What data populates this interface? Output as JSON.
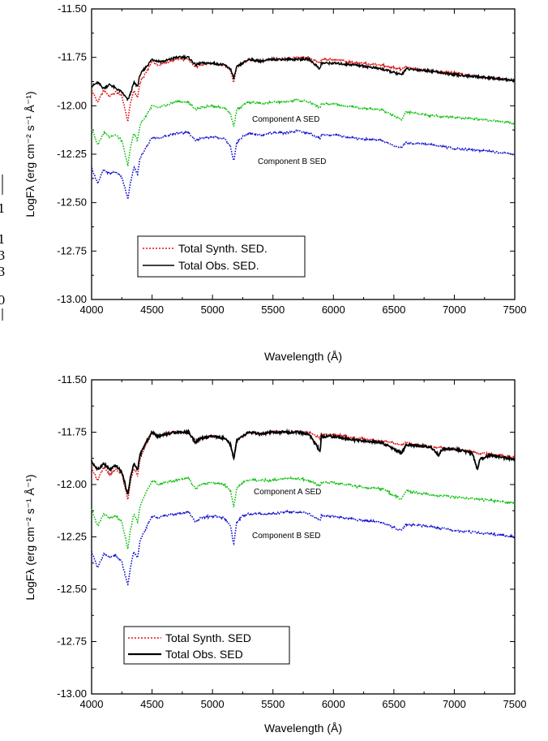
{
  "edge_fragment": [
    "1",
    "1",
    "3",
    "3",
    "0"
  ],
  "chart_data": [
    {
      "type": "line",
      "xlabel": "Wavelength (Å)",
      "ylabel": "LogFλ (erg cm⁻² s⁻¹ Å⁻¹)",
      "xlim": [
        4000,
        7500
      ],
      "ylim": [
        -13.0,
        -11.5
      ],
      "x_ticks": [
        "4000",
        "4500",
        "5000",
        "5500",
        "6000",
        "6500",
        "7000",
        "7500"
      ],
      "y_ticks": [
        "-11.50",
        "-11.75",
        "-12.00",
        "-12.25",
        "-12.50",
        "-12.75",
        "-13.00"
      ],
      "legend": {
        "position": "lower-left",
        "entries": [
          "Total Synth. SED.",
          "Total Obs. SED."
        ]
      },
      "annotations": [
        "Component A SED",
        "Component B SED"
      ],
      "series": [
        {
          "name": "Total Synth. SED.",
          "color": "#e01010",
          "style": "dotted",
          "x": [
            4000,
            4050,
            4100,
            4150,
            4200,
            4250,
            4300,
            4320,
            4350,
            4380,
            4400,
            4450,
            4500,
            4550,
            4600,
            4700,
            4800,
            4861,
            4900,
            5000,
            5100,
            5150,
            5175,
            5200,
            5250,
            5300,
            5400,
            5500,
            5600,
            5700,
            5800,
            5890,
            5900,
            6000,
            6200,
            6400,
            6563,
            6600,
            6800,
            7000,
            7200,
            7500
          ],
          "y": [
            -11.92,
            -11.98,
            -11.92,
            -11.95,
            -11.93,
            -11.95,
            -12.08,
            -11.99,
            -11.92,
            -11.96,
            -11.88,
            -11.83,
            -11.77,
            -11.79,
            -11.78,
            -11.76,
            -11.76,
            -11.8,
            -11.79,
            -11.78,
            -11.79,
            -11.82,
            -11.88,
            -11.8,
            -11.78,
            -11.76,
            -11.77,
            -11.76,
            -11.76,
            -11.75,
            -11.75,
            -11.78,
            -11.76,
            -11.76,
            -11.78,
            -11.79,
            -11.81,
            -11.8,
            -11.82,
            -11.83,
            -11.85,
            -11.87
          ]
        },
        {
          "name": "Total Obs. SED.",
          "color": "#000000",
          "style": "solid",
          "x": [
            4000,
            4050,
            4100,
            4150,
            4200,
            4250,
            4300,
            4320,
            4350,
            4380,
            4400,
            4450,
            4500,
            4550,
            4600,
            4700,
            4800,
            4861,
            4900,
            5000,
            5100,
            5150,
            5175,
            5200,
            5250,
            5300,
            5400,
            5500,
            5600,
            5700,
            5800,
            5890,
            5900,
            6000,
            6200,
            6400,
            6563,
            6600,
            6800,
            7000,
            7200,
            7500
          ],
          "y": [
            -11.9,
            -11.88,
            -11.91,
            -11.89,
            -11.91,
            -11.93,
            -11.97,
            -11.94,
            -11.88,
            -11.9,
            -11.84,
            -11.8,
            -11.76,
            -11.77,
            -11.77,
            -11.75,
            -11.75,
            -11.79,
            -11.78,
            -11.78,
            -11.79,
            -11.81,
            -11.86,
            -11.8,
            -11.78,
            -11.76,
            -11.77,
            -11.76,
            -11.76,
            -11.76,
            -11.76,
            -11.81,
            -11.78,
            -11.78,
            -11.79,
            -11.81,
            -11.84,
            -11.81,
            -11.82,
            -11.84,
            -11.85,
            -11.87
          ]
        },
        {
          "color": "#10c010",
          "style": "dotted",
          "x": [
            4000,
            4050,
            4100,
            4150,
            4200,
            4250,
            4300,
            4320,
            4350,
            4380,
            4400,
            4450,
            4500,
            4550,
            4600,
            4700,
            4800,
            4861,
            4900,
            5000,
            5100,
            5150,
            5175,
            5200,
            5250,
            5300,
            5400,
            5500,
            5600,
            5700,
            5800,
            5890,
            5900,
            6000,
            6200,
            6400,
            6563,
            6600,
            6800,
            7000,
            7200,
            7500
          ],
          "y": [
            -12.12,
            -12.2,
            -12.14,
            -12.16,
            -12.15,
            -12.18,
            -12.31,
            -12.22,
            -12.14,
            -12.18,
            -12.1,
            -12.05,
            -12.0,
            -12.01,
            -12.0,
            -11.98,
            -11.98,
            -12.02,
            -12.01,
            -12.0,
            -12.01,
            -12.04,
            -12.11,
            -12.02,
            -12.0,
            -11.98,
            -11.99,
            -11.98,
            -11.98,
            -11.97,
            -11.98,
            -12.01,
            -11.99,
            -11.99,
            -12.01,
            -12.02,
            -12.07,
            -12.03,
            -12.05,
            -12.06,
            -12.07,
            -12.09
          ]
        },
        {
          "color": "#1010d0",
          "style": "dotted",
          "x": [
            4000,
            4050,
            4100,
            4150,
            4200,
            4250,
            4300,
            4320,
            4350,
            4380,
            4400,
            4450,
            4500,
            4550,
            4600,
            4700,
            4800,
            4861,
            4900,
            5000,
            5100,
            5150,
            5175,
            5200,
            5250,
            5300,
            5400,
            5500,
            5600,
            5700,
            5800,
            5890,
            5900,
            6000,
            6200,
            6400,
            6563,
            6600,
            6800,
            7000,
            7200,
            7500
          ],
          "y": [
            -12.32,
            -12.4,
            -12.33,
            -12.35,
            -12.34,
            -12.37,
            -12.48,
            -12.4,
            -12.32,
            -12.35,
            -12.27,
            -12.22,
            -12.16,
            -12.17,
            -12.16,
            -12.14,
            -12.14,
            -12.18,
            -12.17,
            -12.16,
            -12.17,
            -12.21,
            -12.29,
            -12.19,
            -12.16,
            -12.14,
            -12.15,
            -12.14,
            -12.14,
            -12.13,
            -12.14,
            -12.17,
            -12.15,
            -12.15,
            -12.17,
            -12.18,
            -12.22,
            -12.19,
            -12.2,
            -12.22,
            -12.23,
            -12.25
          ]
        }
      ]
    },
    {
      "type": "line",
      "xlabel": "Wavelength (Å)",
      "ylabel": "LogFλ (erg cm⁻² s⁻¹ Å⁻¹)",
      "xlim": [
        4000,
        7500
      ],
      "ylim": [
        -13.0,
        -11.5
      ],
      "x_ticks": [
        "4000",
        "4500",
        "5000",
        "5500",
        "6000",
        "6500",
        "7000",
        "7500"
      ],
      "y_ticks": [
        "-11.50",
        "-11.75",
        "-12.00",
        "-12.25",
        "-12.50",
        "-12.75",
        "-13.00"
      ],
      "legend": {
        "position": "lower-left",
        "entries": [
          "Total Synth. SED",
          "Total Obs. SED"
        ]
      },
      "annotations": [
        "Component A SED",
        "Component B SED"
      ],
      "series": [
        {
          "name": "Total Synth. SED",
          "color": "#e01010",
          "style": "dotted",
          "x": [
            4000,
            4050,
            4100,
            4150,
            4200,
            4250,
            4300,
            4320,
            4350,
            4380,
            4400,
            4450,
            4500,
            4550,
            4600,
            4700,
            4800,
            4861,
            4900,
            5000,
            5100,
            5150,
            5175,
            5200,
            5250,
            5300,
            5400,
            5500,
            5600,
            5700,
            5800,
            5890,
            5900,
            6000,
            6200,
            6400,
            6563,
            6600,
            6800,
            7000,
            7200,
            7500
          ],
          "y": [
            -11.92,
            -11.98,
            -11.92,
            -11.95,
            -11.93,
            -11.95,
            -12.07,
            -11.99,
            -11.92,
            -11.96,
            -11.88,
            -11.81,
            -11.75,
            -11.77,
            -11.76,
            -11.75,
            -11.75,
            -11.79,
            -11.78,
            -11.77,
            -11.78,
            -11.81,
            -11.87,
            -11.79,
            -11.77,
            -11.75,
            -11.76,
            -11.75,
            -11.75,
            -11.75,
            -11.75,
            -11.78,
            -11.76,
            -11.76,
            -11.78,
            -11.79,
            -11.81,
            -11.8,
            -11.82,
            -11.83,
            -11.85,
            -11.87
          ]
        },
        {
          "name": "Total Obs. SED",
          "color": "#000000",
          "style": "solid",
          "x": [
            4000,
            4050,
            4100,
            4150,
            4200,
            4250,
            4300,
            4320,
            4350,
            4380,
            4400,
            4450,
            4500,
            4550,
            4600,
            4700,
            4800,
            4861,
            4900,
            5000,
            5100,
            5150,
            5175,
            5200,
            5250,
            5300,
            5400,
            5500,
            5600,
            5700,
            5800,
            5890,
            5900,
            6000,
            6200,
            6400,
            6563,
            6600,
            6800,
            6870,
            6900,
            7000,
            7150,
            7190,
            7210,
            7250,
            7300,
            7500
          ],
          "y": [
            -11.89,
            -11.93,
            -11.9,
            -11.93,
            -11.91,
            -11.94,
            -12.05,
            -11.97,
            -11.9,
            -11.93,
            -11.86,
            -11.8,
            -11.75,
            -11.77,
            -11.76,
            -11.75,
            -11.75,
            -11.8,
            -11.78,
            -11.77,
            -11.78,
            -11.81,
            -11.88,
            -11.79,
            -11.77,
            -11.75,
            -11.76,
            -11.75,
            -11.75,
            -11.75,
            -11.76,
            -11.84,
            -11.77,
            -11.77,
            -11.79,
            -11.8,
            -11.85,
            -11.81,
            -11.82,
            -11.86,
            -11.83,
            -11.83,
            -11.85,
            -11.93,
            -11.88,
            -11.87,
            -11.86,
            -11.88
          ]
        },
        {
          "color": "#10c010",
          "style": "dotted",
          "x": [
            4000,
            4050,
            4100,
            4150,
            4200,
            4250,
            4300,
            4320,
            4350,
            4380,
            4400,
            4450,
            4500,
            4550,
            4600,
            4700,
            4800,
            4861,
            4900,
            5000,
            5100,
            5150,
            5175,
            5200,
            5250,
            5300,
            5400,
            5500,
            5600,
            5700,
            5800,
            5890,
            5900,
            6000,
            6200,
            6400,
            6563,
            6600,
            6800,
            7000,
            7200,
            7500
          ],
          "y": [
            -12.12,
            -12.2,
            -12.14,
            -12.16,
            -12.15,
            -12.18,
            -12.31,
            -12.22,
            -12.14,
            -12.18,
            -12.1,
            -12.04,
            -11.98,
            -12.0,
            -11.99,
            -11.98,
            -11.97,
            -12.02,
            -12.0,
            -11.99,
            -12.0,
            -12.03,
            -12.11,
            -12.02,
            -11.99,
            -11.98,
            -11.98,
            -11.98,
            -11.97,
            -11.97,
            -11.98,
            -12.01,
            -11.99,
            -11.99,
            -12.01,
            -12.02,
            -12.07,
            -12.03,
            -12.05,
            -12.06,
            -12.07,
            -12.09
          ]
        },
        {
          "color": "#1010d0",
          "style": "dotted",
          "x": [
            4000,
            4050,
            4100,
            4150,
            4200,
            4250,
            4300,
            4320,
            4350,
            4380,
            4400,
            4450,
            4500,
            4550,
            4600,
            4700,
            4800,
            4861,
            4900,
            5000,
            5100,
            5150,
            5175,
            5200,
            5250,
            5300,
            5400,
            5500,
            5600,
            5700,
            5800,
            5890,
            5900,
            6000,
            6200,
            6400,
            6563,
            6600,
            6800,
            7000,
            7200,
            7500
          ],
          "y": [
            -12.32,
            -12.4,
            -12.33,
            -12.35,
            -12.34,
            -12.37,
            -12.48,
            -12.4,
            -12.32,
            -12.35,
            -12.27,
            -12.21,
            -12.15,
            -12.16,
            -12.15,
            -12.14,
            -12.13,
            -12.18,
            -12.16,
            -12.15,
            -12.16,
            -12.2,
            -12.29,
            -12.18,
            -12.15,
            -12.14,
            -12.14,
            -12.14,
            -12.13,
            -12.13,
            -12.14,
            -12.17,
            -12.15,
            -12.15,
            -12.17,
            -12.18,
            -12.22,
            -12.19,
            -12.2,
            -12.22,
            -12.23,
            -12.25
          ]
        }
      ]
    }
  ]
}
